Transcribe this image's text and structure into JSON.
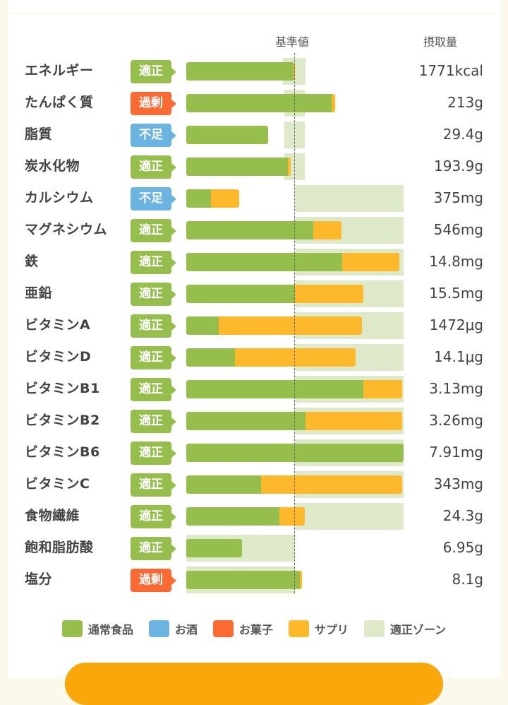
{
  "header": {
    "baseline_label": "基準値",
    "intake_label": "摂取量"
  },
  "colors": {
    "normal": "#95be4c",
    "alcohol": "#6bb3e1",
    "snack": "#fb6a32",
    "supplement": "#fdb92b",
    "zone": "#dde9c8",
    "ok": "#95be4c",
    "over": "#fb6a32",
    "under": "#6bb3e1"
  },
  "rows": [
    {
      "name": "エネルギー",
      "status": "適正",
      "kind": "ok",
      "normal": 0.99,
      "supplement": 0.01,
      "zone": [
        0.89,
        1.1
      ],
      "value": "1771kcal"
    },
    {
      "name": "たんぱく質",
      "status": "過剰",
      "kind": "over",
      "normal": 1.34,
      "supplement": 0.03,
      "zone": [
        0.9,
        1.09
      ],
      "value": "213g"
    },
    {
      "name": "脂質",
      "status": "不足",
      "kind": "under",
      "normal": 0.75,
      "supplement": 0,
      "zone": [
        0.9,
        1.09
      ],
      "value": "29.4g"
    },
    {
      "name": "炭水化物",
      "status": "適正",
      "kind": "ok",
      "normal": 0.935,
      "supplement": 0.025,
      "zone": [
        0.9,
        1.09
      ],
      "value": "193.9g"
    },
    {
      "name": "カルシウム",
      "status": "不足",
      "kind": "under",
      "normal": 0.23,
      "supplement": 0.26,
      "zone": [
        1,
        2
      ],
      "value": "375mg"
    },
    {
      "name": "マグネシウム",
      "status": "適正",
      "kind": "ok",
      "normal": 1.17,
      "supplement": 0.26,
      "zone": [
        1,
        2
      ],
      "value": "546mg"
    },
    {
      "name": "鉄",
      "status": "適正",
      "kind": "ok",
      "normal": 1.435,
      "supplement": 0.525,
      "zone": [
        1,
        2
      ],
      "value": "14.8mg"
    },
    {
      "name": "亜鉛",
      "status": "適正",
      "kind": "ok",
      "normal": 1.0,
      "supplement": 0.63,
      "zone": [
        1,
        2
      ],
      "value": "15.5mg"
    },
    {
      "name": "ビタミンA",
      "status": "適正",
      "kind": "ok",
      "normal": 0.3,
      "supplement": 1.32,
      "zone": [
        1,
        2
      ],
      "value": "1472μg"
    },
    {
      "name": "ビタミンD",
      "status": "適正",
      "kind": "ok",
      "normal": 0.45,
      "supplement": 1.11,
      "zone": [
        1,
        2
      ],
      "value": "14.1μg"
    },
    {
      "name": "ビタミンB1",
      "status": "適正",
      "kind": "ok",
      "normal": 1.63,
      "supplement": 0.36,
      "zone": [
        1,
        2
      ],
      "value": "3.13mg"
    },
    {
      "name": "ビタミンB2",
      "status": "適正",
      "kind": "ok",
      "normal": 1.1,
      "supplement": 0.89,
      "zone": [
        1,
        2
      ],
      "value": "3.26mg"
    },
    {
      "name": "ビタミンB6",
      "status": "適正",
      "kind": "ok",
      "normal": 2.0,
      "supplement": 0,
      "zone": [
        1,
        2
      ],
      "value": "7.91mg"
    },
    {
      "name": "ビタミンC",
      "status": "適正",
      "kind": "ok",
      "normal": 0.69,
      "supplement": 1.3,
      "zone": [
        1,
        2
      ],
      "value": "343mg"
    },
    {
      "name": "食物繊維",
      "status": "適正",
      "kind": "ok",
      "normal": 0.86,
      "supplement": 0.23,
      "zone": [
        1,
        2
      ],
      "value": "24.3g"
    },
    {
      "name": "飽和脂肪酸",
      "status": "適正",
      "kind": "ok",
      "normal": 0.51,
      "supplement": 0,
      "zone": [
        0,
        1
      ],
      "value": "6.95g"
    },
    {
      "name": "塩分",
      "status": "過剰",
      "kind": "over",
      "normal": 1.045,
      "supplement": 0.02,
      "zone": [
        0,
        1
      ],
      "value": "8.1g"
    }
  ],
  "legend": [
    {
      "label": "通常食品",
      "color": "#95be4c"
    },
    {
      "label": "お酒",
      "color": "#6bb3e1"
    },
    {
      "label": "お菓子",
      "color": "#fb6a32"
    },
    {
      "label": "サプリ",
      "color": "#fdb92b"
    },
    {
      "label": "適正ゾーン",
      "color": "#dde9c8"
    }
  ]
}
